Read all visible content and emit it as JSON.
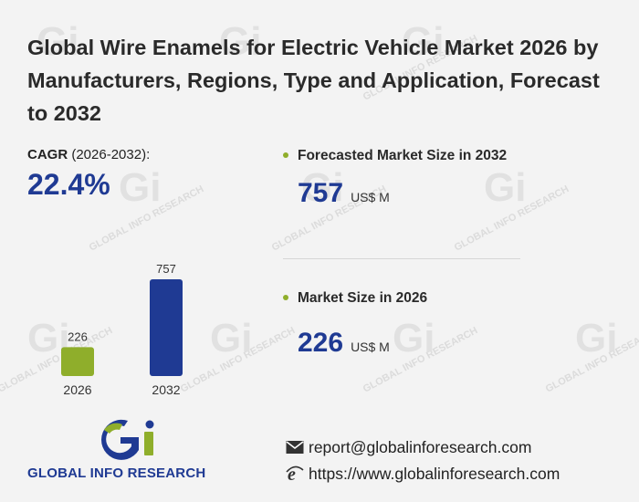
{
  "title": "Global Wire Enamels for Electric Vehicle Market 2026 by Manufacturers, Regions, Type and Application, Forecast to 2032",
  "cagr": {
    "label": "CAGR",
    "period": "(2026-2032):",
    "value": "22.4%"
  },
  "stats": [
    {
      "label": "Forecasted Market Size in 2032",
      "value": "757",
      "unit": "US$ M"
    },
    {
      "label": "Market Size in 2026",
      "value": "226",
      "unit": "US$ M"
    }
  ],
  "chart_data": {
    "type": "bar",
    "categories": [
      "2026",
      "2032"
    ],
    "values": [
      226,
      757
    ],
    "data_labels": [
      "226",
      "757"
    ],
    "colors": [
      "#8fae2b",
      "#1f3a93"
    ],
    "ylim": [
      0,
      800
    ],
    "title": "",
    "xlabel": "",
    "ylabel": ""
  },
  "logo": {
    "name": "GLOBAL INFO RESEARCH",
    "glyph": "Gi"
  },
  "contact": {
    "email": "report@globalinforesearch.com",
    "website": "https://www.globalinforesearch.com",
    "email_icon": "envelope-icon",
    "web_icon": "browser-e-icon"
  },
  "watermark": "GLOBAL INFO RESEARCH",
  "colors": {
    "accent_blue": "#1f3a93",
    "accent_green": "#8fae2b",
    "background": "#f3f3f3"
  }
}
